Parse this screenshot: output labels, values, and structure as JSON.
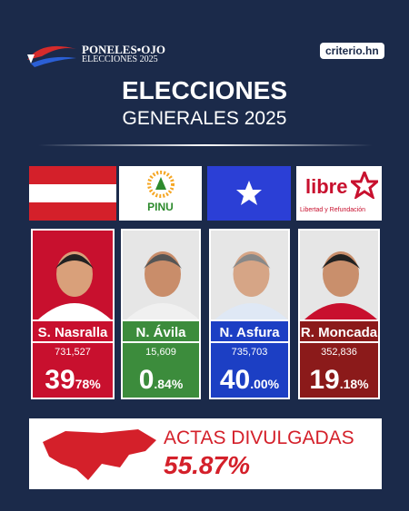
{
  "header": {
    "logo_title": "PONELES•OJO",
    "logo_subtitle": "ELECCIONES 2025",
    "site": "criterio.hn"
  },
  "title": {
    "line1": "ELECCIONES",
    "line2": "GENERALES 2025"
  },
  "parties": {
    "pinu": "PINU",
    "libre": "libre",
    "libre_motto": "Libertad y Refundación"
  },
  "candidates": [
    {
      "name": "S. Nasralla",
      "votes": "731,527",
      "percent_main": "39",
      "percent_decimal": "78%"
    },
    {
      "name": "N. Ávila",
      "votes": "15,609",
      "percent_main": "0",
      "percent_decimal": ".84%"
    },
    {
      "name": "N. Asfura",
      "votes": "735,703",
      "percent_main": "40",
      "percent_decimal": ".00%"
    },
    {
      "name": "R. Moncada",
      "votes": "352,836",
      "percent_main": "19",
      "percent_decimal": ".18%"
    }
  ],
  "footer": {
    "label": "ACTAS DIVULGADAS",
    "value": "55.87%"
  }
}
